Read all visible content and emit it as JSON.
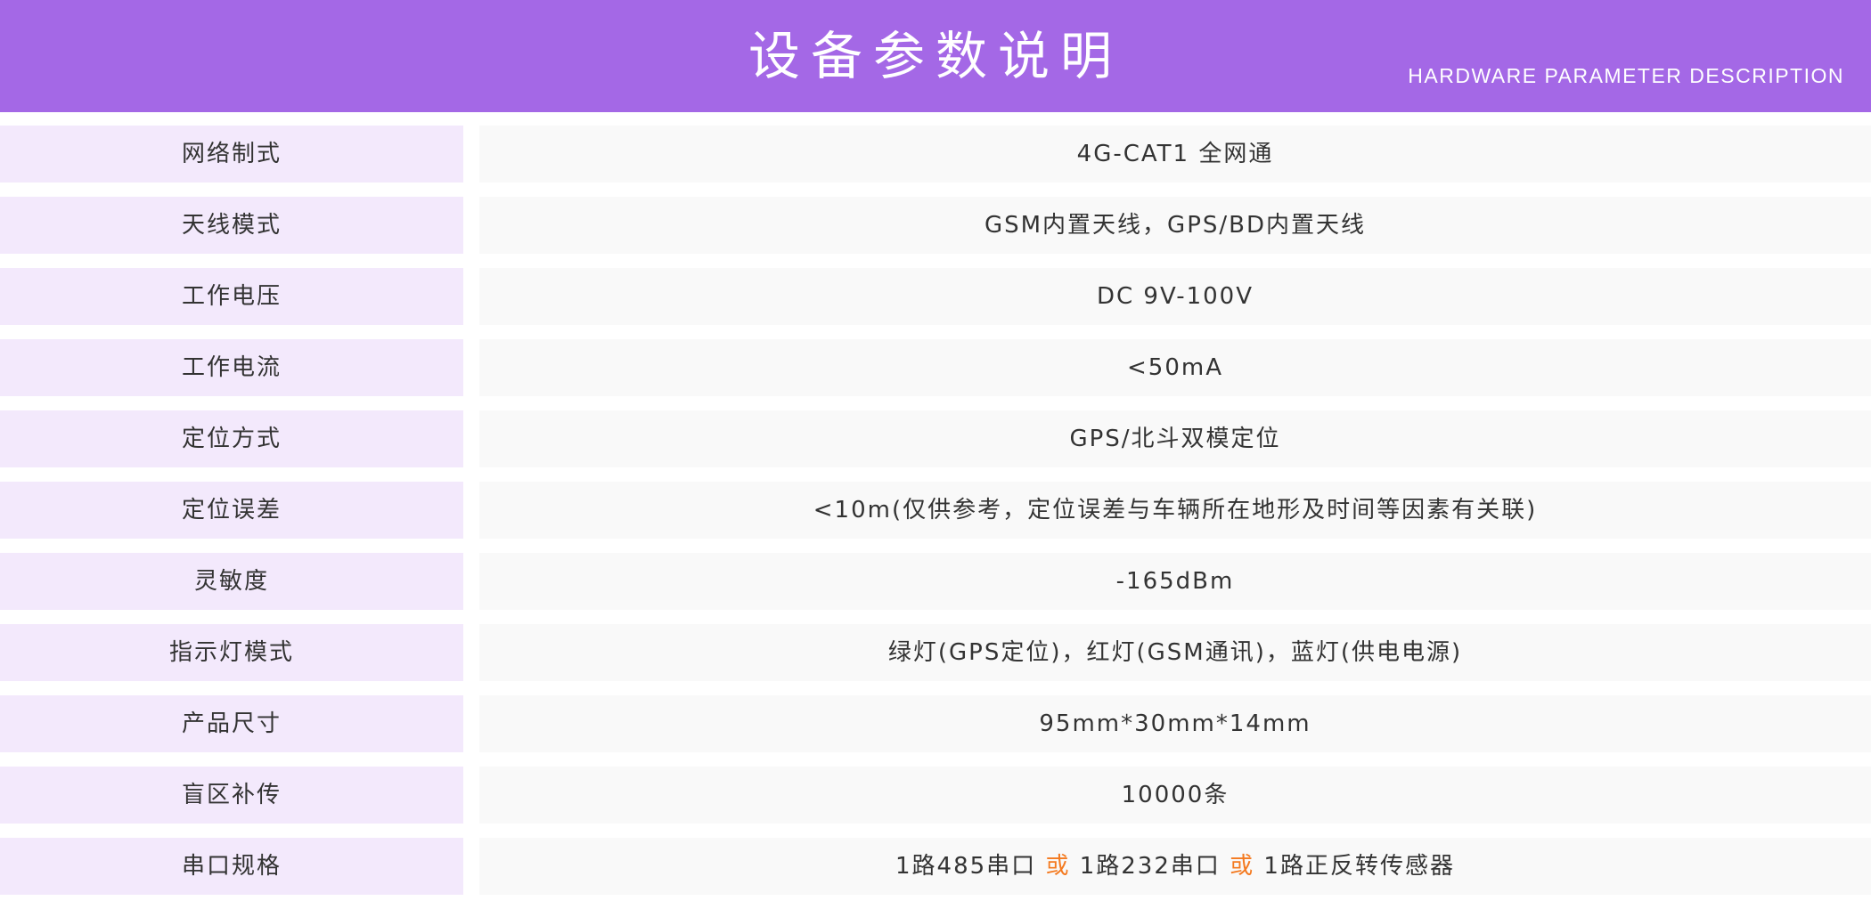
{
  "header": {
    "title": "设备参数说明",
    "subtitle": "HARDWARE PARAMETER DESCRIPTION",
    "bg_color": "#a468e6"
  },
  "rows": [
    {
      "label": "网络制式",
      "value": "4G-CAT1 全网通"
    },
    {
      "label": "天线模式",
      "value": "GSM内置天线，GPS/BD内置天线"
    },
    {
      "label": "工作电压",
      "value": "DC 9V-100V"
    },
    {
      "label": "工作电流",
      "value": "<50mA"
    },
    {
      "label": "定位方式",
      "value": "GPS/北斗双模定位"
    },
    {
      "label": "定位误差",
      "value": "<10m(仅供参考，定位误差与车辆所在地形及时间等因素有关联)"
    },
    {
      "label": "灵敏度",
      "value": "-165dBm"
    },
    {
      "label": "指示灯模式",
      "value": "绿灯(GPS定位)，红灯(GSM通讯)，蓝灯(供电电源)"
    },
    {
      "label": "产品尺寸",
      "value": "95mm*30mm*14mm"
    },
    {
      "label": "盲区补传",
      "value": "10000条"
    },
    {
      "label": "串口规格",
      "parts": [
        "1路485串口 ",
        "或",
        " 1路232串口 ",
        "或",
        " 1路正反转传感器"
      ]
    }
  ],
  "colors": {
    "label_bg": "#f3e9fc",
    "value_bg": "#f9f9f9",
    "highlight": "#f47a20"
  }
}
